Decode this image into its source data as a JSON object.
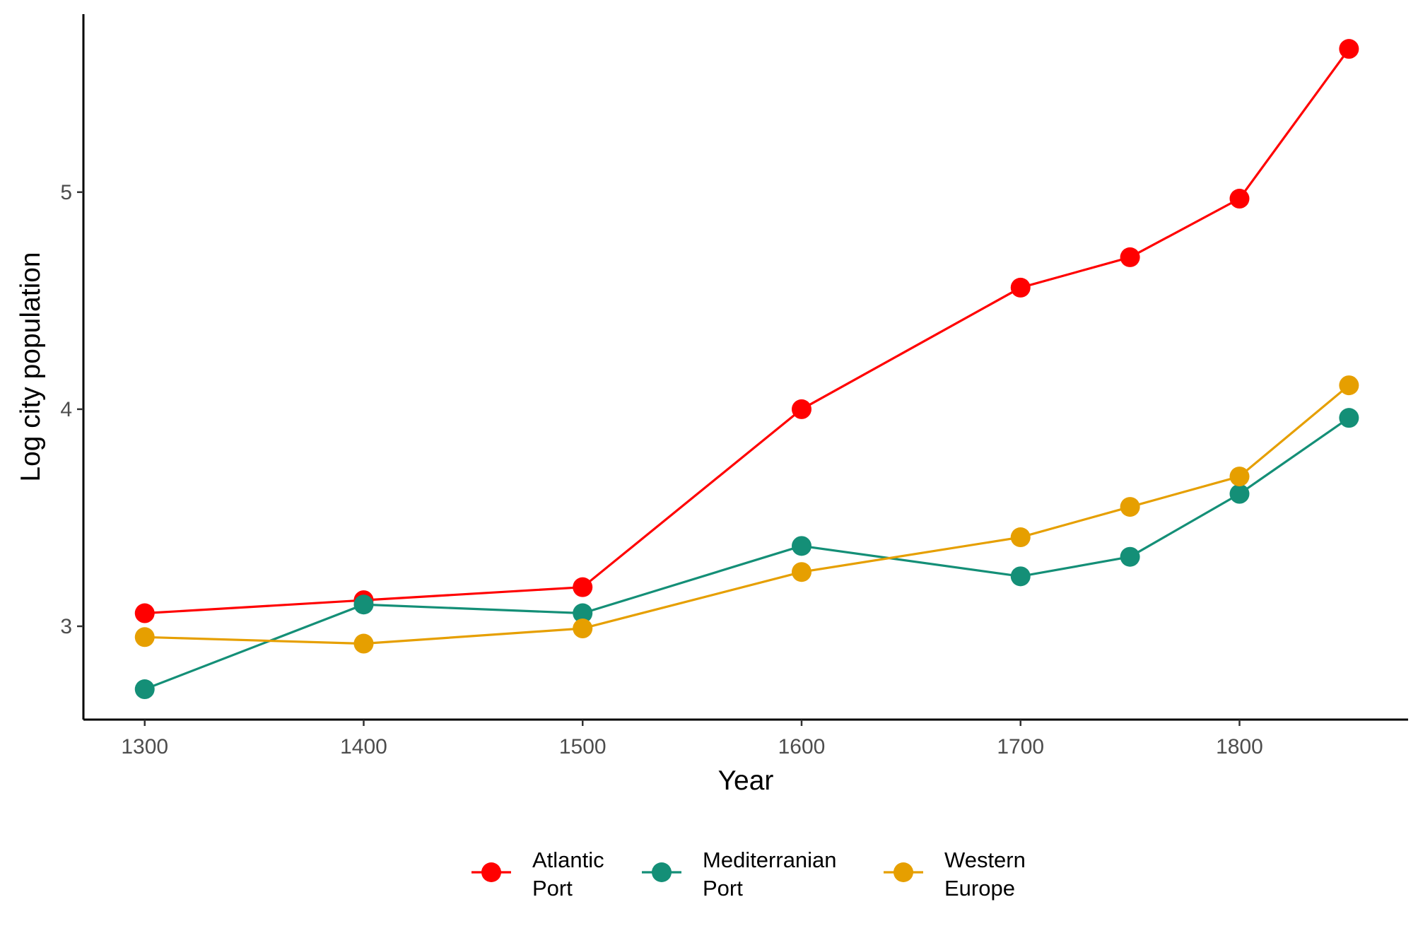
{
  "chart_data": {
    "type": "line",
    "title": "",
    "xlabel": "Year",
    "ylabel": "Log city population",
    "x": [
      1300,
      1400,
      1500,
      1600,
      1700,
      1750,
      1800,
      1850
    ],
    "xticks": [
      "1300",
      "1400",
      "1500",
      "1600",
      "1700",
      "1800"
    ],
    "xtick_values": [
      1300,
      1400,
      1500,
      1600,
      1700,
      1800
    ],
    "yticks": [
      "3",
      "4",
      "5"
    ],
    "ytick_values": [
      3,
      4,
      5
    ],
    "xlim": [
      1272,
      1877
    ],
    "ylim": [
      2.57,
      5.82
    ],
    "grid": false,
    "legend_position": "bottom",
    "series": [
      {
        "name": "Atlantic Port",
        "name_lines": [
          "Atlantic",
          "Port"
        ],
        "color": "#ff0000",
        "values": [
          3.06,
          3.12,
          3.18,
          4.0,
          4.56,
          4.7,
          4.97,
          5.66
        ]
      },
      {
        "name": "Mediterranian Port",
        "name_lines": [
          "Mediterranian",
          "Port"
        ],
        "color": "#148f77",
        "values": [
          2.71,
          3.1,
          3.06,
          3.37,
          3.23,
          3.32,
          3.61,
          3.96
        ]
      },
      {
        "name": "Western Europe",
        "name_lines": [
          "Western",
          "Europe"
        ],
        "color": "#e69f00",
        "values": [
          2.95,
          2.92,
          2.99,
          3.25,
          3.41,
          3.55,
          3.69,
          4.11
        ]
      }
    ]
  }
}
